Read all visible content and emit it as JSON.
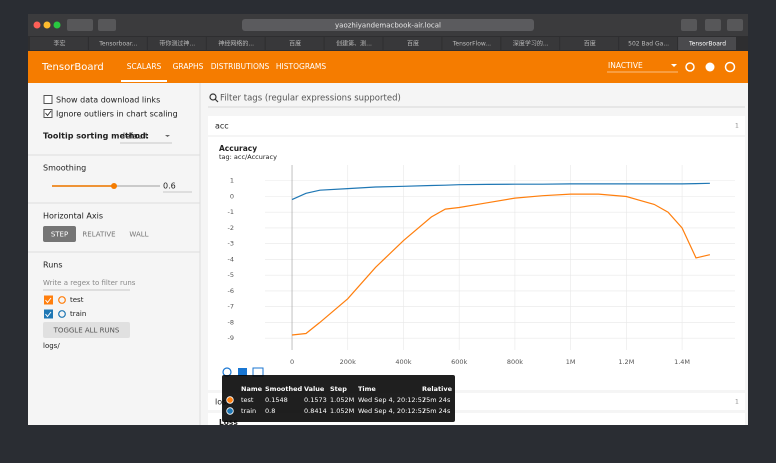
{
  "browser": {
    "url": "yaozhiyandemacbook-air.local",
    "tabs": [
      "李宏",
      "Tensorboar...",
      "带你测过神...",
      "神经网络的...",
      "百度",
      "创建第、测...",
      "百度",
      "TensorFlow...",
      "深度学习的...",
      "百度",
      "502 Bad Ga...",
      "TensorBoard"
    ]
  },
  "header": {
    "title": "TensorBoard",
    "nav": [
      "SCALARS",
      "GRAPHS",
      "DISTRIBUTIONS",
      "HISTOGRAMS"
    ],
    "status": "INACTIVE"
  },
  "sidebar": {
    "show_download": "Show data download links",
    "ignore_outliers": "Ignore outliers in chart scaling",
    "tooltip_label": "Tooltip sorting method:",
    "tooltip_value": "default",
    "smoothing_label": "Smoothing",
    "smoothing_value": 0.6,
    "axis_label": "Horizontal Axis",
    "axis_options": [
      "STEP",
      "RELATIVE",
      "WALL"
    ],
    "runs_label": "Runs",
    "runs_filter": "Write a regex to filter runs",
    "runs": [
      "test",
      "train"
    ],
    "toggle": "TOGGLE ALL RUNS",
    "logdir": "logs/"
  },
  "main": {
    "filter": "Filter tags (regular expressions supported)",
    "sections": [
      {
        "tag": "acc",
        "count": 1
      },
      {
        "tag": "loss",
        "count": 1
      }
    ],
    "next_chart_title": "Loss"
  },
  "chart_data": {
    "type": "line",
    "title": "Accuracy",
    "subtitle": "tag: acc/Accuracy",
    "x": [
      0,
      50000,
      100000,
      200000,
      300000,
      400000,
      500000,
      550000,
      600000,
      700000,
      800000,
      900000,
      1000000,
      1050000,
      1100000,
      1200000,
      1300000,
      1350000,
      1400000,
      1450000,
      1500000
    ],
    "series": [
      {
        "name": "test",
        "color": "#ff7f0e",
        "values": [
          -8.8,
          -8.7,
          -8.0,
          -6.5,
          -4.5,
          -2.8,
          -1.3,
          -0.8,
          -0.7,
          -0.4,
          -0.1,
          0.05,
          0.15,
          0.15,
          0.15,
          0.0,
          -0.5,
          -1.0,
          -2.0,
          -3.9,
          -3.7
        ]
      },
      {
        "name": "train",
        "color": "#1f77b4",
        "values": [
          -0.2,
          0.2,
          0.4,
          0.5,
          0.6,
          0.65,
          0.7,
          0.72,
          0.75,
          0.77,
          0.78,
          0.78,
          0.8,
          0.8,
          0.8,
          0.8,
          0.8,
          0.8,
          0.8,
          0.82,
          0.84
        ]
      }
    ],
    "xlim": [
      -97000,
      1590000
    ],
    "ylim": [
      -9.75,
      2
    ],
    "xticks": [
      0,
      {
        "value": 200000,
        "label": "200k"
      },
      {
        "value": 400000,
        "label": "400k"
      },
      {
        "value": 600000,
        "label": "600k"
      },
      {
        "value": 800000,
        "label": "800k"
      },
      {
        "value": 1000000,
        "label": "1M"
      },
      {
        "value": 1200000,
        "label": "1.2M"
      },
      {
        "value": 1400000,
        "label": "1.4M"
      }
    ],
    "yticks": [
      1,
      0,
      -1,
      -2,
      -3,
      -4,
      -5,
      -6,
      -7,
      -8,
      -9
    ],
    "grid": true
  },
  "tooltip": {
    "columns": [
      "Name",
      "Smoothed",
      "Value",
      "Step",
      "Time",
      "Relative"
    ],
    "rows": [
      [
        "test",
        0.1548,
        0.1573,
        "1.052M",
        "Wed Sep 4, 20:12:57",
        "25m 24s"
      ],
      [
        "train",
        0.8,
        0.8414,
        "1.052M",
        "Wed Sep 4, 20:12:57",
        "25m 24s"
      ]
    ]
  }
}
